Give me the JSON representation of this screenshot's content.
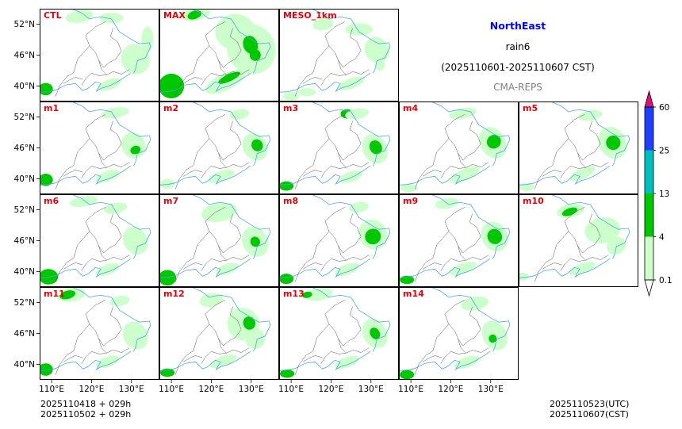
{
  "header": {
    "region": "NorthEast",
    "variable": "rain6",
    "period": "(2025110601-2025110607 CST)",
    "system": "CMA-REPS"
  },
  "colors": {
    "region_title": "#0000ff",
    "system_label": "#808080",
    "panel_label": "#e8000b",
    "coast": "#4aa8e0",
    "border": "#555555"
  },
  "footer": {
    "init_line1": "2025110418  +  029h",
    "init_line2": "2025110502  +  029h",
    "valid_utc": "2025110523(UTC)",
    "valid_cst": "2025110607(CST)"
  },
  "chart_data": {
    "type": "heatmap",
    "title": "NorthEast rain6 (2025110601-2025110607 CST)",
    "subtitle": "CMA-REPS",
    "xlabel": "",
    "ylabel": "",
    "xlim": [
      107,
      137
    ],
    "ylim": [
      37,
      55
    ],
    "x_ticks": [
      "110°E",
      "120°E",
      "130°E"
    ],
    "y_ticks": [
      "52°N",
      "46°N",
      "40°N"
    ],
    "x_tick_values": [
      110,
      120,
      130
    ],
    "y_tick_values": [
      52,
      46,
      40
    ],
    "panels": [
      "CTL",
      "MAX",
      "MESO_1km",
      "m1",
      "m2",
      "m3",
      "m4",
      "m5",
      "m6",
      "m7",
      "m8",
      "m9",
      "m10",
      "m11",
      "m12",
      "m13",
      "m14"
    ],
    "colorbar": {
      "levels": [
        "0.1",
        "4",
        "13",
        "25",
        "60"
      ],
      "level_values": [
        0.1,
        4,
        13,
        25,
        60
      ],
      "colors": [
        "#ccffcc",
        "#00c800",
        "#00bfbf",
        "#1f3fff"
      ],
      "over_color": "#e0107a",
      "under_color": "#ffffff"
    }
  }
}
